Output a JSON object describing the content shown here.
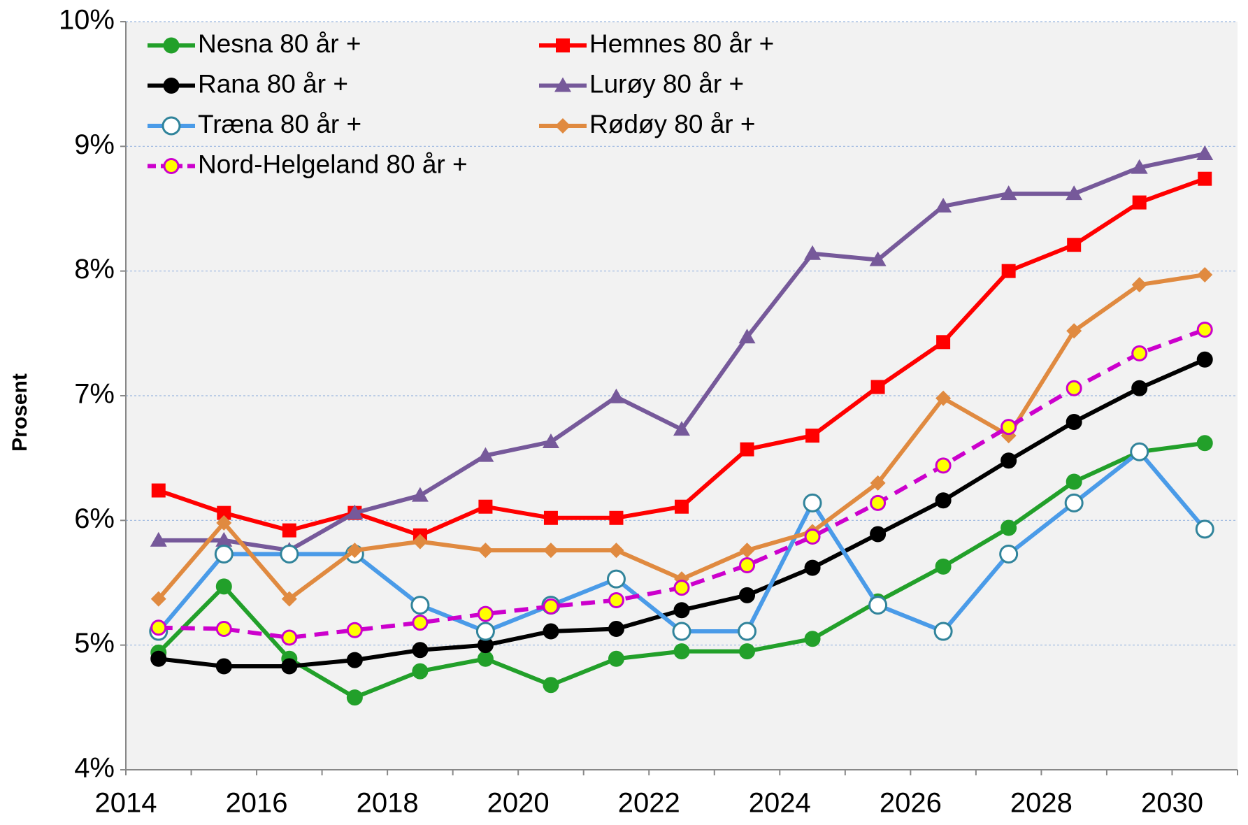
{
  "chart_data": {
    "type": "line",
    "y_label": "Prosent",
    "categories": [
      "2014",
      null,
      "2016",
      null,
      "2018",
      null,
      "2020",
      null,
      "2022",
      null,
      "2024",
      null,
      "2026",
      null,
      "2028",
      null,
      "2030"
    ],
    "ylim": [
      4,
      10
    ],
    "yticks": [
      {
        "value": 4,
        "label": "4%"
      },
      {
        "value": 5,
        "label": "5%"
      },
      {
        "value": 6,
        "label": "6%"
      },
      {
        "value": 7,
        "label": "7%"
      },
      {
        "value": 8,
        "label": "8%"
      },
      {
        "value": 9,
        "label": "9%"
      },
      {
        "value": 10,
        "label": "10%"
      }
    ],
    "grid": true,
    "legend": "top-left",
    "series": [
      {
        "name": "Nesna 80 år +",
        "color": "#22a02a",
        "marker": "circle",
        "marker_fill": "#22a02a",
        "dash": false,
        "values": [
          4.94,
          5.47,
          4.89,
          4.58,
          4.79,
          4.89,
          4.68,
          4.89,
          4.95,
          4.95,
          5.05,
          5.35,
          5.63,
          5.94,
          6.31,
          6.55,
          6.62
        ]
      },
      {
        "name": "Hemnes 80 år +",
        "color": "#ff0000",
        "marker": "square",
        "marker_fill": "#ff0000",
        "dash": false,
        "values": [
          6.24,
          6.06,
          5.92,
          6.06,
          5.88,
          6.11,
          6.02,
          6.02,
          6.11,
          6.57,
          6.68,
          7.07,
          7.43,
          8.0,
          8.21,
          8.55,
          8.74
        ]
      },
      {
        "name": "Rana 80 år +",
        "color": "#000000",
        "marker": "circle",
        "marker_fill": "#000000",
        "dash": false,
        "values": [
          4.89,
          4.83,
          4.83,
          4.88,
          4.96,
          5.0,
          5.11,
          5.13,
          5.28,
          5.4,
          5.62,
          5.89,
          6.16,
          6.48,
          6.79,
          7.06,
          7.29
        ]
      },
      {
        "name": "Lurøy 80 år +",
        "color": "#76599a",
        "marker": "triangle",
        "marker_fill": "#76599a",
        "dash": false,
        "values": [
          5.84,
          5.84,
          5.76,
          6.06,
          6.2,
          6.52,
          6.63,
          6.99,
          6.73,
          7.47,
          8.14,
          8.09,
          8.52,
          8.62,
          8.62,
          8.83,
          8.94
        ]
      },
      {
        "name": "Træna 80 år +",
        "color": "#4a9be8",
        "marker": "circle",
        "marker_fill": "#ffffff",
        "marker_stroke": "#31849b",
        "dash": false,
        "values": [
          5.11,
          5.73,
          5.73,
          5.73,
          5.32,
          5.11,
          5.32,
          5.53,
          5.11,
          5.11,
          6.14,
          5.32,
          5.11,
          5.73,
          6.14,
          6.55,
          5.93
        ]
      },
      {
        "name": "Rødøy 80 år +",
        "color": "#e08a40",
        "marker": "diamond",
        "marker_fill": "#e08a40",
        "dash": false,
        "values": [
          5.37,
          5.98,
          5.37,
          5.76,
          5.83,
          5.76,
          5.76,
          5.76,
          5.53,
          5.76,
          5.91,
          6.3,
          6.98,
          6.68,
          7.52,
          7.89,
          7.97
        ]
      },
      {
        "name": "Nord-Helgeland 80 år +",
        "color": "#cc00cc",
        "marker": "circle",
        "marker_fill": "#ffff00",
        "dash": true,
        "values": [
          5.14,
          5.13,
          5.06,
          5.12,
          5.18,
          5.25,
          5.31,
          5.36,
          5.46,
          5.64,
          5.87,
          6.14,
          6.44,
          6.75,
          7.06,
          7.34,
          7.53
        ]
      }
    ]
  }
}
